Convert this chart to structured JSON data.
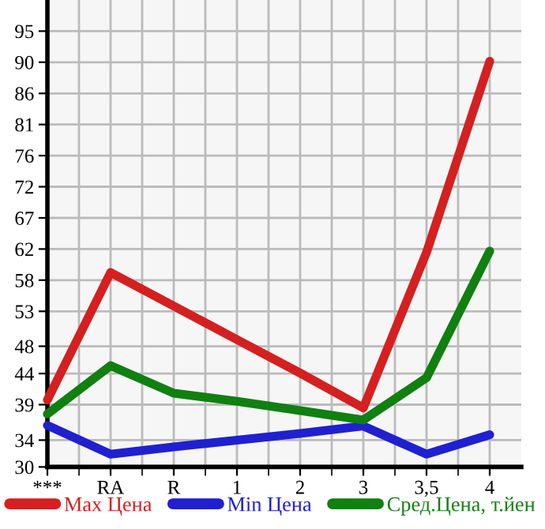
{
  "chart_data": {
    "type": "line",
    "categories": [
      "***",
      "RA",
      "R",
      "1",
      "2",
      "3",
      "3,5",
      "4"
    ],
    "series": [
      {
        "name": "Max Цена",
        "color": "#d42020",
        "values": [
          40.0,
          59.0,
          54.0,
          49.0,
          44.0,
          38.8,
          62.0,
          90.5
        ]
      },
      {
        "name": "Min Цена",
        "color": "#2020d0",
        "values": [
          36.2,
          31.9,
          33.0,
          34.0,
          35.0,
          36.1,
          31.9,
          34.8
        ]
      },
      {
        "name": "Сред.Цена, т.йен",
        "color": "#108010",
        "values": [
          37.9,
          45.1,
          41.0,
          39.8,
          38.4,
          37.0,
          43.3,
          62.2
        ]
      }
    ],
    "ylim": [
      30,
      99.64
    ],
    "yticks": [
      30,
      34,
      {
        "value": 39.29,
        "label": "39"
      },
      {
        "value": 43.93,
        "label": "44"
      },
      48,
      {
        "value": 53.21,
        "label": "53"
      },
      {
        "value": 57.86,
        "label": "58"
      },
      {
        "value": 62.5,
        "label": "62"
      },
      {
        "value": 67.14,
        "label": "67"
      },
      {
        "value": 71.79,
        "label": "72"
      },
      {
        "value": 76.43,
        "label": "76"
      },
      {
        "value": 81.07,
        "label": "81"
      },
      {
        "value": 85.71,
        "label": "86"
      },
      {
        "value": 90.36,
        "label": "90"
      },
      95
    ],
    "grid": true,
    "legend": "bottom",
    "marker": "none",
    "line_style": "solid"
  }
}
